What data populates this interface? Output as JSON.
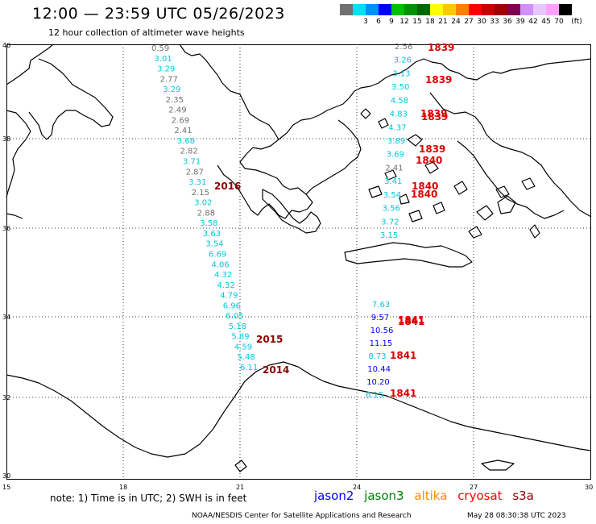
{
  "header": {
    "title": "12:00 — 23:59 UTC 05/26/2023",
    "subtitle": "12 hour collection of altimeter wave heights"
  },
  "color_scale": {
    "unit": "(ft)",
    "bins": [
      {
        "color": "#707070",
        "label": ""
      },
      {
        "color": "#00e0f0",
        "label": "3"
      },
      {
        "color": "#0090ff",
        "label": "6"
      },
      {
        "color": "#0000ff",
        "label": "9"
      },
      {
        "color": "#00c000",
        "label": "12"
      },
      {
        "color": "#009000",
        "label": "15"
      },
      {
        "color": "#006800",
        "label": "18"
      },
      {
        "color": "#ffff00",
        "label": "21"
      },
      {
        "color": "#ffc800",
        "label": "24"
      },
      {
        "color": "#ff8000",
        "label": "27"
      },
      {
        "color": "#ff0000",
        "label": "30"
      },
      {
        "color": "#c80000",
        "label": "33"
      },
      {
        "color": "#a00000",
        "label": "36"
      },
      {
        "color": "#800050",
        "label": "39"
      },
      {
        "color": "#d090ff",
        "label": "42"
      },
      {
        "color": "#e6c8ff",
        "label": "45"
      },
      {
        "color": "#ffa0ff",
        "label": "70"
      },
      {
        "color": "#000000",
        "label": ""
      }
    ]
  },
  "axes": {
    "lon_ticks": [
      "15",
      "18",
      "21",
      "24",
      "27",
      "30"
    ],
    "lat_ticks": [
      "40",
      "38",
      "36",
      "34",
      "32",
      "30"
    ]
  },
  "tracks": [
    {
      "name": "west-track",
      "observations": [
        {
          "v": "0.59",
          "c": "#707070"
        },
        {
          "v": "3.01",
          "c": "#00c8dc"
        },
        {
          "v": "3.29",
          "c": "#00c8dc"
        },
        {
          "v": "2.77",
          "c": "#707070"
        },
        {
          "v": "3.29",
          "c": "#00c8dc"
        },
        {
          "v": "2.35",
          "c": "#707070"
        },
        {
          "v": "2.49",
          "c": "#707070"
        },
        {
          "v": "2.69",
          "c": "#707070"
        },
        {
          "v": "2.41",
          "c": "#707070"
        },
        {
          "v": "3.68",
          "c": "#00c8dc"
        },
        {
          "v": "2.82",
          "c": "#707070"
        },
        {
          "v": "3.71",
          "c": "#00c8dc"
        },
        {
          "v": "2.87",
          "c": "#707070"
        },
        {
          "v": "3.31",
          "c": "#00c8dc"
        },
        {
          "v": "2.15",
          "c": "#707070"
        },
        {
          "v": "3.02",
          "c": "#00c8dc"
        },
        {
          "v": "2.88",
          "c": "#707070"
        },
        {
          "v": "3.58",
          "c": "#00c8dc"
        },
        {
          "v": "3.63",
          "c": "#00c8dc"
        },
        {
          "v": "3.54",
          "c": "#00c8dc"
        },
        {
          "v": "6.69",
          "c": "#00c8dc"
        },
        {
          "v": "4.06",
          "c": "#00c8dc"
        },
        {
          "v": "4.32",
          "c": "#00c8dc"
        },
        {
          "v": "4.32",
          "c": "#00c8dc"
        },
        {
          "v": "4.79",
          "c": "#00c8dc"
        },
        {
          "v": "6.96",
          "c": "#00c8dc"
        },
        {
          "v": "6.05",
          "c": "#00c8dc"
        },
        {
          "v": "5.18",
          "c": "#00c8dc"
        },
        {
          "v": "5.89",
          "c": "#00c8dc"
        },
        {
          "v": "4.59",
          "c": "#00c8dc"
        },
        {
          "v": "5.48",
          "c": "#00c8dc"
        },
        {
          "v": "6.11",
          "c": "#00c8dc"
        }
      ]
    },
    {
      "name": "east-track-north",
      "observations": [
        {
          "v": "2.56",
          "c": "#707070"
        },
        {
          "v": "3.26",
          "c": "#00c8dc"
        },
        {
          "v": "3.13",
          "c": "#00c8dc"
        },
        {
          "v": "3.50",
          "c": "#00c8dc"
        },
        {
          "v": "4.58",
          "c": "#00c8dc"
        },
        {
          "v": "4.83",
          "c": "#00c8dc"
        },
        {
          "v": "4.37",
          "c": "#00c8dc"
        },
        {
          "v": "3.89",
          "c": "#00c8dc"
        },
        {
          "v": "3.69",
          "c": "#00c8dc"
        },
        {
          "v": "2.41",
          "c": "#707070"
        },
        {
          "v": "3.41",
          "c": "#00c8dc"
        },
        {
          "v": "3.54",
          "c": "#00c8dc"
        },
        {
          "v": "3.56",
          "c": "#00c8dc"
        },
        {
          "v": "3.72",
          "c": "#00c8dc"
        },
        {
          "v": "3.15",
          "c": "#00c8dc"
        }
      ]
    },
    {
      "name": "east-track-south",
      "observations": [
        {
          "v": "7.63",
          "c": "#00c8dc"
        },
        {
          "v": "9.57",
          "c": "#0000ff"
        },
        {
          "v": "10.56",
          "c": "#0000ff"
        },
        {
          "v": "11.15",
          "c": "#0000ff"
        },
        {
          "v": "8.73",
          "c": "#00c8dc"
        },
        {
          "v": "10.44",
          "c": "#0000ff"
        },
        {
          "v": "10.20",
          "c": "#0000ff"
        },
        {
          "v": "6.15",
          "c": "#00c8dc"
        }
      ]
    }
  ],
  "pass_labels": [
    {
      "text": "1839",
      "style": "red"
    },
    {
      "text": "1839",
      "style": "red"
    },
    {
      "text": "1839",
      "style": "red"
    },
    {
      "text": "1839",
      "style": "red"
    },
    {
      "text": "1839",
      "style": "red"
    },
    {
      "text": "1840",
      "style": "red"
    },
    {
      "text": "1840",
      "style": "red"
    },
    {
      "text": "1840",
      "style": "red"
    },
    {
      "text": "1841",
      "style": "red"
    },
    {
      "text": "1841",
      "style": "red"
    },
    {
      "text": "1841",
      "style": "red"
    },
    {
      "text": "1841",
      "style": "red"
    },
    {
      "text": "2016",
      "style": "dark"
    },
    {
      "text": "2015",
      "style": "dark"
    },
    {
      "text": "2014",
      "style": "dark"
    }
  ],
  "footer": {
    "note": "note:  1) Time is in UTC;  2) SWH is in feet",
    "missions": [
      {
        "name": "jason2",
        "color": "#0000ff"
      },
      {
        "name": "jason3",
        "color": "#008000"
      },
      {
        "name": "altika",
        "color": "#ff8c00"
      },
      {
        "name": "cryosat",
        "color": "#ff0000"
      },
      {
        "name": "s3a",
        "color": "#8b0000"
      }
    ],
    "credit": "NOAA/NESDIS Center for Satellite Applications and Research",
    "stamp": "May 28 08:30:38 UTC 2023"
  }
}
